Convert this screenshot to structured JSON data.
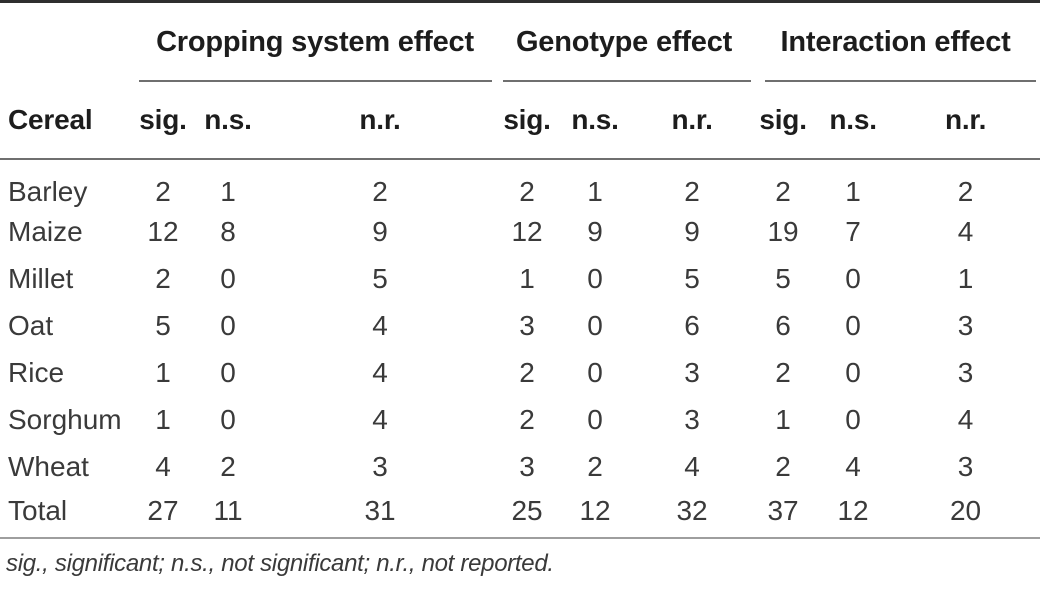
{
  "table": {
    "row_header_label": "Cereal",
    "groups": [
      {
        "label": "Cropping system effect",
        "columns": [
          "sig.",
          "n.s.",
          "n.r."
        ]
      },
      {
        "label": "Genotype effect",
        "columns": [
          "sig.",
          "n.s.",
          "n.r."
        ]
      },
      {
        "label": "Interaction effect",
        "columns": [
          "sig.",
          "n.s.",
          "n.r."
        ]
      }
    ],
    "rows": [
      {
        "cereal": "Barley",
        "values": [
          2,
          1,
          2,
          2,
          1,
          2,
          2,
          1,
          2
        ]
      },
      {
        "cereal": "Maize",
        "values": [
          12,
          8,
          9,
          12,
          9,
          9,
          19,
          7,
          4
        ]
      },
      {
        "cereal": "Millet",
        "values": [
          2,
          0,
          5,
          1,
          0,
          5,
          5,
          0,
          1
        ]
      },
      {
        "cereal": "Oat",
        "values": [
          5,
          0,
          4,
          3,
          0,
          6,
          6,
          0,
          3
        ]
      },
      {
        "cereal": "Rice",
        "values": [
          1,
          0,
          4,
          2,
          0,
          3,
          2,
          0,
          3
        ]
      },
      {
        "cereal": "Sorghum",
        "values": [
          1,
          0,
          4,
          2,
          0,
          3,
          1,
          0,
          4
        ]
      },
      {
        "cereal": "Wheat",
        "values": [
          4,
          2,
          3,
          3,
          2,
          4,
          2,
          4,
          3
        ]
      },
      {
        "cereal": "Total",
        "values": [
          27,
          11,
          31,
          25,
          12,
          32,
          37,
          12,
          20
        ]
      }
    ],
    "footnote": "sig., significant; n.s., not significant; n.r., not reported."
  },
  "colors": {
    "rule_dark": "#2e2e2e",
    "rule_mid": "#6f6f6f",
    "rule_light": "#9e9e9e",
    "text_dark": "#1d1d1d",
    "text_data": "#3a3a3a",
    "background": "#ffffff"
  }
}
